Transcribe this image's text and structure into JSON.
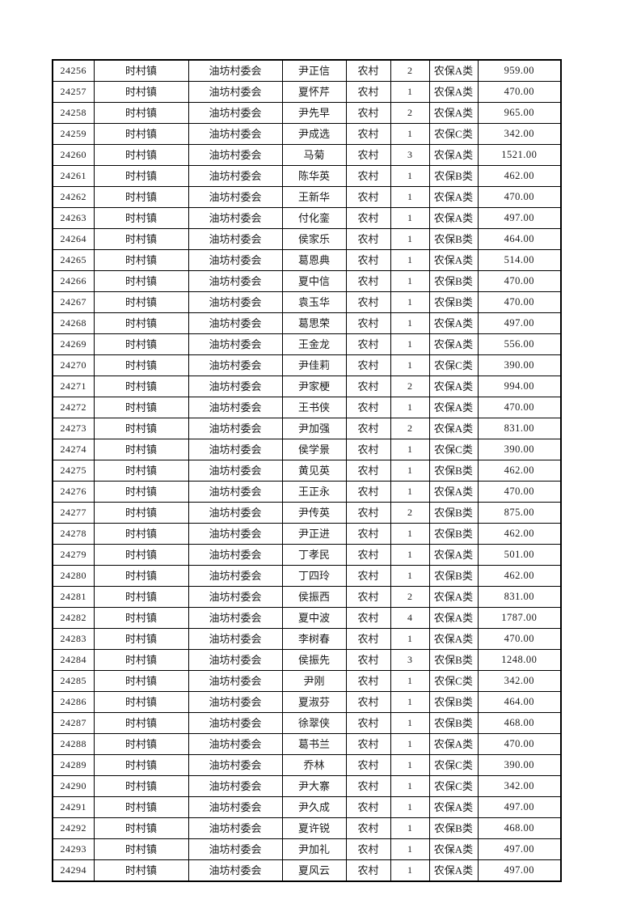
{
  "colors": {
    "page_background": "#ffffff",
    "grid_border": "#000000",
    "text": "#1b1b1b"
  },
  "table": {
    "column_keys": [
      "record-id",
      "town",
      "village-committee",
      "name",
      "residence-type",
      "person-count",
      "insurance-category",
      "amount"
    ],
    "rows": [
      [
        "24256",
        "时村镇",
        "油坊村委会",
        "尹正信",
        "农村",
        "2",
        "农保A类",
        "959.00"
      ],
      [
        "24257",
        "时村镇",
        "油坊村委会",
        "夏怀芹",
        "农村",
        "1",
        "农保A类",
        "470.00"
      ],
      [
        "24258",
        "时村镇",
        "油坊村委会",
        "尹先早",
        "农村",
        "2",
        "农保A类",
        "965.00"
      ],
      [
        "24259",
        "时村镇",
        "油坊村委会",
        "尹成选",
        "农村",
        "1",
        "农保C类",
        "342.00"
      ],
      [
        "24260",
        "时村镇",
        "油坊村委会",
        "马菊",
        "农村",
        "3",
        "农保A类",
        "1521.00"
      ],
      [
        "24261",
        "时村镇",
        "油坊村委会",
        "陈华英",
        "农村",
        "1",
        "农保B类",
        "462.00"
      ],
      [
        "24262",
        "时村镇",
        "油坊村委会",
        "王新华",
        "农村",
        "1",
        "农保A类",
        "470.00"
      ],
      [
        "24263",
        "时村镇",
        "油坊村委会",
        "付化銮",
        "农村",
        "1",
        "农保A类",
        "497.00"
      ],
      [
        "24264",
        "时村镇",
        "油坊村委会",
        "侯家乐",
        "农村",
        "1",
        "农保B类",
        "464.00"
      ],
      [
        "24265",
        "时村镇",
        "油坊村委会",
        "葛恩典",
        "农村",
        "1",
        "农保A类",
        "514.00"
      ],
      [
        "24266",
        "时村镇",
        "油坊村委会",
        "夏中信",
        "农村",
        "1",
        "农保B类",
        "470.00"
      ],
      [
        "24267",
        "时村镇",
        "油坊村委会",
        "袁玉华",
        "农村",
        "1",
        "农保B类",
        "470.00"
      ],
      [
        "24268",
        "时村镇",
        "油坊村委会",
        "葛思荣",
        "农村",
        "1",
        "农保A类",
        "497.00"
      ],
      [
        "24269",
        "时村镇",
        "油坊村委会",
        "王金龙",
        "农村",
        "1",
        "农保A类",
        "556.00"
      ],
      [
        "24270",
        "时村镇",
        "油坊村委会",
        "尹佳莉",
        "农村",
        "1",
        "农保C类",
        "390.00"
      ],
      [
        "24271",
        "时村镇",
        "油坊村委会",
        "尹家梗",
        "农村",
        "2",
        "农保A类",
        "994.00"
      ],
      [
        "24272",
        "时村镇",
        "油坊村委会",
        "王书侠",
        "农村",
        "1",
        "农保A类",
        "470.00"
      ],
      [
        "24273",
        "时村镇",
        "油坊村委会",
        "尹加强",
        "农村",
        "2",
        "农保A类",
        "831.00"
      ],
      [
        "24274",
        "时村镇",
        "油坊村委会",
        "侯学景",
        "农村",
        "1",
        "农保C类",
        "390.00"
      ],
      [
        "24275",
        "时村镇",
        "油坊村委会",
        "黄见英",
        "农村",
        "1",
        "农保B类",
        "462.00"
      ],
      [
        "24276",
        "时村镇",
        "油坊村委会",
        "王正永",
        "农村",
        "1",
        "农保A类",
        "470.00"
      ],
      [
        "24277",
        "时村镇",
        "油坊村委会",
        "尹传英",
        "农村",
        "2",
        "农保B类",
        "875.00"
      ],
      [
        "24278",
        "时村镇",
        "油坊村委会",
        "尹正进",
        "农村",
        "1",
        "农保B类",
        "462.00"
      ],
      [
        "24279",
        "时村镇",
        "油坊村委会",
        "丁孝民",
        "农村",
        "1",
        "农保A类",
        "501.00"
      ],
      [
        "24280",
        "时村镇",
        "油坊村委会",
        "丁四玲",
        "农村",
        "1",
        "农保B类",
        "462.00"
      ],
      [
        "24281",
        "时村镇",
        "油坊村委会",
        "侯振西",
        "农村",
        "2",
        "农保A类",
        "831.00"
      ],
      [
        "24282",
        "时村镇",
        "油坊村委会",
        "夏中波",
        "农村",
        "4",
        "农保A类",
        "1787.00"
      ],
      [
        "24283",
        "时村镇",
        "油坊村委会",
        "李树春",
        "农村",
        "1",
        "农保A类",
        "470.00"
      ],
      [
        "24284",
        "时村镇",
        "油坊村委会",
        "侯振先",
        "农村",
        "3",
        "农保B类",
        "1248.00"
      ],
      [
        "24285",
        "时村镇",
        "油坊村委会",
        "尹刚",
        "农村",
        "1",
        "农保C类",
        "342.00"
      ],
      [
        "24286",
        "时村镇",
        "油坊村委会",
        "夏淑芬",
        "农村",
        "1",
        "农保B类",
        "464.00"
      ],
      [
        "24287",
        "时村镇",
        "油坊村委会",
        "徐翠侠",
        "农村",
        "1",
        "农保B类",
        "468.00"
      ],
      [
        "24288",
        "时村镇",
        "油坊村委会",
        "葛书兰",
        "农村",
        "1",
        "农保A类",
        "470.00"
      ],
      [
        "24289",
        "时村镇",
        "油坊村委会",
        "乔林",
        "农村",
        "1",
        "农保C类",
        "390.00"
      ],
      [
        "24290",
        "时村镇",
        "油坊村委会",
        "尹大寨",
        "农村",
        "1",
        "农保C类",
        "342.00"
      ],
      [
        "24291",
        "时村镇",
        "油坊村委会",
        "尹久成",
        "农村",
        "1",
        "农保A类",
        "497.00"
      ],
      [
        "24292",
        "时村镇",
        "油坊村委会",
        "夏许锐",
        "农村",
        "1",
        "农保B类",
        "468.00"
      ],
      [
        "24293",
        "时村镇",
        "油坊村委会",
        "尹加礼",
        "农村",
        "1",
        "农保A类",
        "497.00"
      ],
      [
        "24294",
        "时村镇",
        "油坊村委会",
        "夏风云",
        "农村",
        "1",
        "农保A类",
        "497.00"
      ]
    ]
  }
}
